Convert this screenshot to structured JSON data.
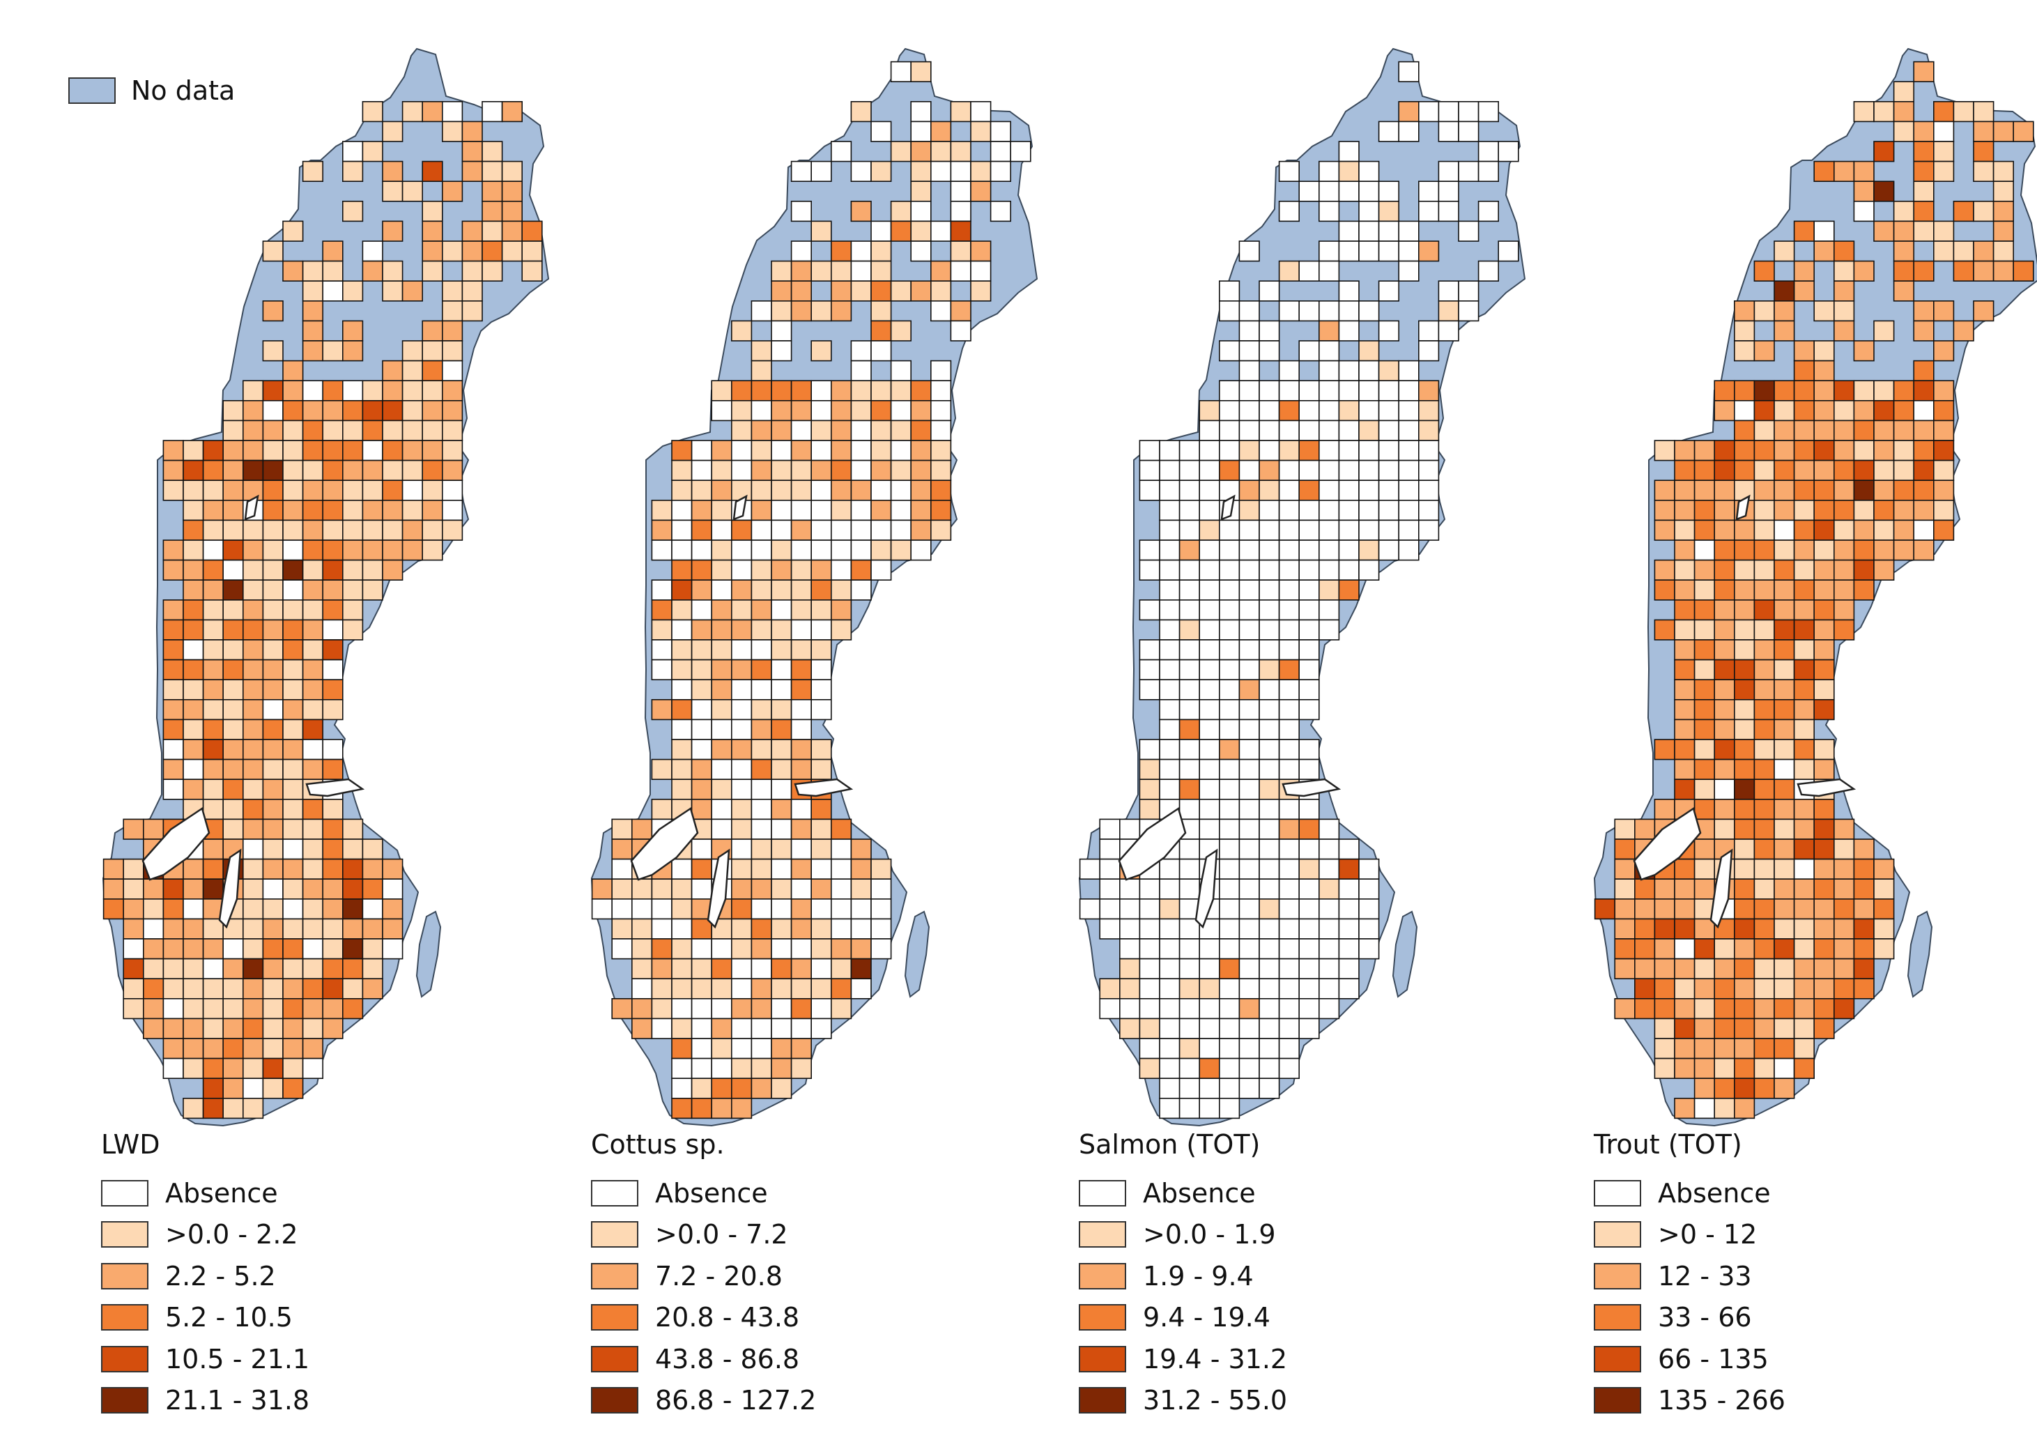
{
  "no_data": {
    "label": "No data",
    "color": "#A7BEDB"
  },
  "panels": [
    {
      "name": "LWD",
      "title": "LWD",
      "classes": [
        {
          "label": "Absence",
          "color": "#FFFFFF"
        },
        {
          "label": ">0.0 - 2.2",
          "color": "#FDD9B4"
        },
        {
          "label": "2.2 - 5.2",
          "color": "#F9AA6E"
        },
        {
          "label": "5.2 - 10.5",
          "color": "#F27F33"
        },
        {
          "label": "10.5 - 21.1",
          "color": "#D44E0D"
        },
        {
          "label": "21.1 - 31.8",
          "color": "#7F2704"
        }
      ],
      "mix": [
        0.1,
        0.36,
        0.32,
        0.17,
        0.04,
        0.01
      ]
    },
    {
      "name": "Cottus",
      "title": "Cottus sp.",
      "classes": [
        {
          "label": "Absence",
          "color": "#FFFFFF"
        },
        {
          "label": ">0.0 - 7.2",
          "color": "#FDD9B4"
        },
        {
          "label": "7.2 - 20.8",
          "color": "#F9AA6E"
        },
        {
          "label": "20.8 - 43.8",
          "color": "#F27F33"
        },
        {
          "label": "43.8 - 86.8",
          "color": "#D44E0D"
        },
        {
          "label": "86.8 - 127.2",
          "color": "#7F2704"
        }
      ],
      "mix": [
        0.4,
        0.3,
        0.2,
        0.08,
        0.015,
        0.005
      ]
    },
    {
      "name": "Salmon",
      "title": "Salmon (TOT)",
      "classes": [
        {
          "label": "Absence",
          "color": "#FFFFFF"
        },
        {
          "label": ">0.0 - 1.9",
          "color": "#FDD9B4"
        },
        {
          "label": "1.9 - 9.4",
          "color": "#F9AA6E"
        },
        {
          "label": "9.4 - 19.4",
          "color": "#F27F33"
        },
        {
          "label": "19.4 - 31.2",
          "color": "#D44E0D"
        },
        {
          "label": "31.2 - 55.0",
          "color": "#7F2704"
        }
      ],
      "mix": [
        0.88,
        0.07,
        0.03,
        0.01,
        0.007,
        0.003
      ]
    },
    {
      "name": "Trout",
      "title": "Trout (TOT)",
      "classes": [
        {
          "label": "Absence",
          "color": "#FFFFFF"
        },
        {
          "label": ">0 - 12",
          "color": "#FDD9B4"
        },
        {
          "label": "12 - 33",
          "color": "#F9AA6E"
        },
        {
          "label": "33 - 66",
          "color": "#F27F33"
        },
        {
          "label": "66 - 135",
          "color": "#D44E0D"
        },
        {
          "label": "135 - 266",
          "color": "#7F2704"
        }
      ],
      "mix": [
        0.04,
        0.2,
        0.4,
        0.28,
        0.07,
        0.01
      ]
    }
  ]
}
